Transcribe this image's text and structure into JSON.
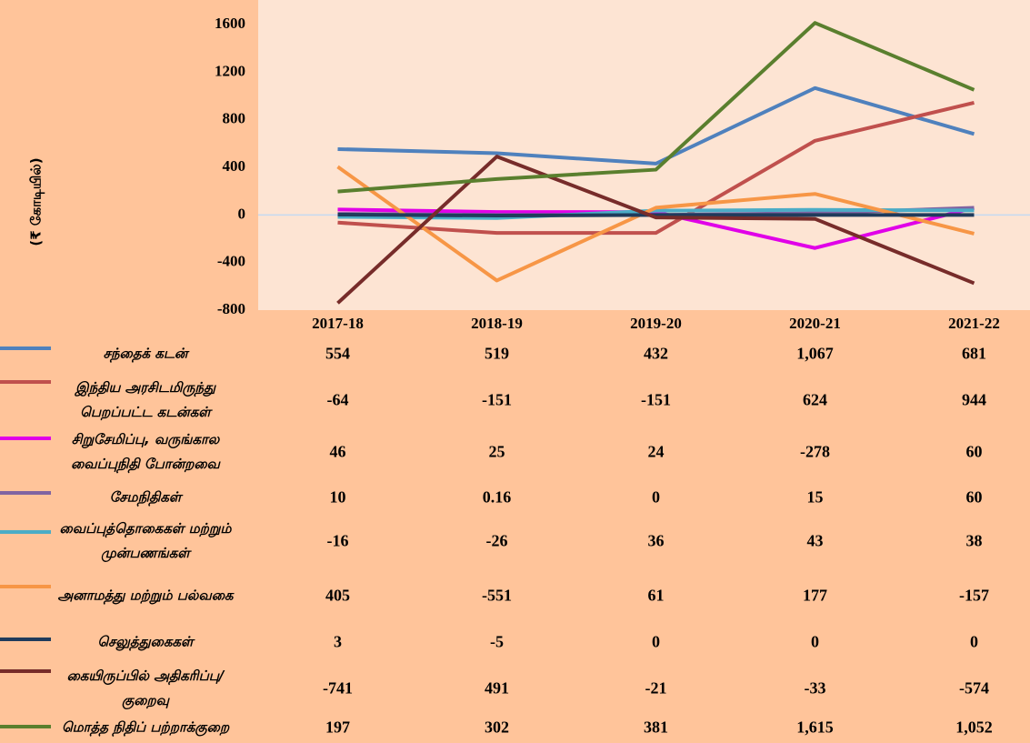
{
  "chart_data": {
    "type": "line",
    "y_label": "(₹ கோடியில்)",
    "categories": [
      "2017-18",
      "2018-19",
      "2019-20",
      "2020-21",
      "2021-22"
    ],
    "ylim": [
      -800,
      1800
    ],
    "yticks": [
      -800,
      -400,
      0,
      400,
      800,
      1200,
      1600
    ],
    "series": [
      {
        "name": "சந்தைக் கடன்",
        "color": "#4F81BD",
        "values": [
          554,
          519,
          432,
          1067,
          681
        ],
        "value_labels": [
          "554",
          "519",
          "432",
          "1,067",
          "681"
        ]
      },
      {
        "name": "இந்திய அரசிடமிருந்து பெறப்பட்ட கடன்கள்",
        "color": "#C0504D",
        "values": [
          -64,
          -151,
          -151,
          624,
          944
        ]
      },
      {
        "name": "சிறுசேமிப்பு, வருங்கால வைப்புநிதி போன்றவை",
        "color": "#E000E8",
        "values": [
          46,
          25,
          24,
          -278,
          60
        ]
      },
      {
        "name": "சேமநிதிகள்",
        "color": "#8064A2",
        "values": [
          10,
          0.16,
          0,
          15,
          60
        ]
      },
      {
        "name": "வைப்புத்தொகைகள் மற்றும் முன்பணங்கள்",
        "color": "#4BACC6",
        "values": [
          -16,
          -26,
          36,
          43,
          38
        ]
      },
      {
        "name": "அனாமத்து மற்றும் பல்வகை",
        "color": "#F79646",
        "values": [
          405,
          -551,
          61,
          177,
          -157
        ]
      },
      {
        "name": "செலுத்துகைகள்",
        "color": "#1F3B5C",
        "values": [
          3,
          -5,
          0,
          0,
          0
        ]
      },
      {
        "name": "கையிருப்பில் அதிகரிப்பு/குறைவு",
        "color": "#772C2A",
        "values": [
          -741,
          491,
          -21,
          -33,
          -574
        ]
      },
      {
        "name": "மொத்த நிதிப் பற்றாக்குறை",
        "color": "#5A7F2E",
        "values": [
          197,
          302,
          381,
          1615,
          1052
        ],
        "value_labels": [
          "197",
          "302",
          "381",
          "1,615",
          "1,052"
        ]
      }
    ]
  }
}
